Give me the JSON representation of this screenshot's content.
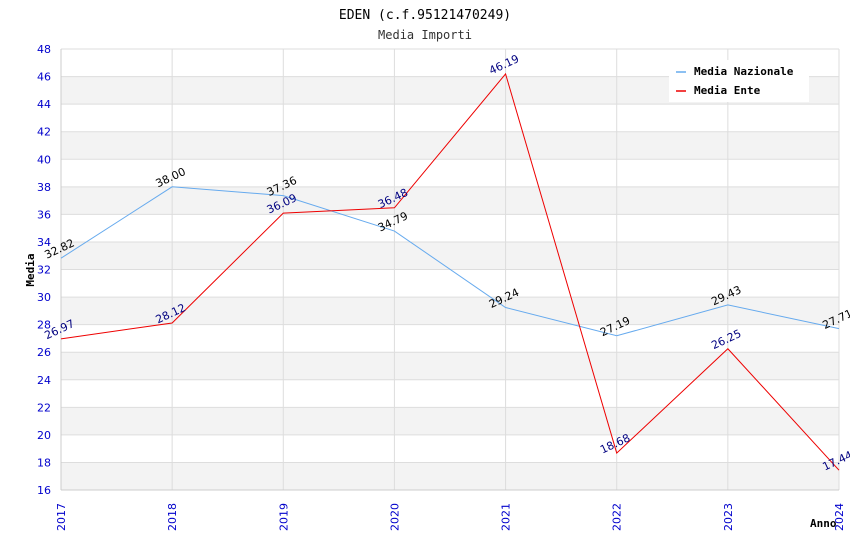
{
  "chart_data": {
    "type": "line",
    "title": "EDEN (c.f.95121470249)",
    "subtitle": "Media Importi",
    "ylabel": "Media",
    "xlabel": "Anno",
    "ylim": [
      16,
      48
    ],
    "ytick_step": 2,
    "grid": true,
    "legend_position": "top-right",
    "x": [
      "2017",
      "2018",
      "2019",
      "2020",
      "2021",
      "2022",
      "2023",
      "2024"
    ],
    "series": [
      {
        "name": "Media Nazionale",
        "color": "#66aaee",
        "label_color": "#000000",
        "values": [
          32.82,
          38.0,
          37.36,
          34.79,
          29.24,
          27.19,
          29.43,
          27.71
        ],
        "labels": [
          "32.82",
          "38.00",
          "37.36",
          "34.79",
          "29.24",
          "27.19",
          "29.43",
          "27.71"
        ]
      },
      {
        "name": "Media Ente",
        "color": "#ee0000",
        "label_color": "#000080",
        "values": [
          26.97,
          28.12,
          36.09,
          36.48,
          46.19,
          18.68,
          26.25,
          17.44
        ],
        "labels": [
          "26.97",
          "28.12",
          "36.09",
          "36.48",
          "46.19",
          "18.68",
          "26.25",
          "17.44"
        ]
      }
    ]
  }
}
